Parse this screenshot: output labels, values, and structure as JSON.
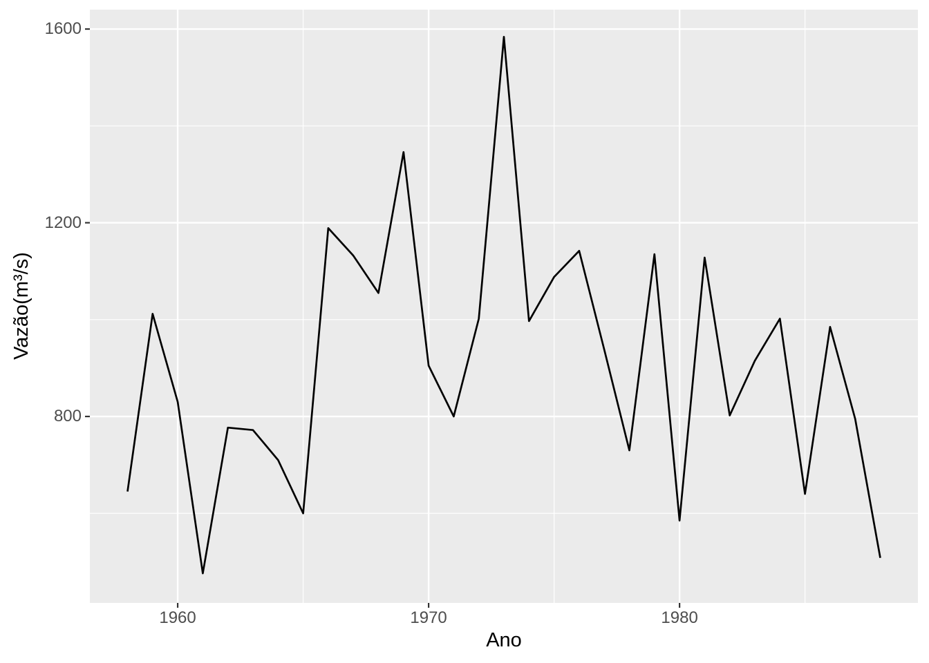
{
  "chart_data": {
    "type": "line",
    "title": "",
    "xlabel": "Ano",
    "ylabel": "Vazão(m³/s)",
    "x": [
      1958,
      1959,
      1960,
      1961,
      1962,
      1963,
      1964,
      1965,
      1966,
      1967,
      1968,
      1969,
      1970,
      1971,
      1972,
      1973,
      1974,
      1975,
      1976,
      1977,
      1978,
      1979,
      1980,
      1981,
      1982,
      1983,
      1984,
      1985,
      1986,
      1987,
      1988
    ],
    "series": [
      {
        "name": "Vazão",
        "values": [
          645,
          1012,
          830,
          476,
          777,
          772,
          710,
          600,
          1189,
          1132,
          1055,
          1346,
          905,
          800,
          1002,
          1584,
          997,
          1088,
          1142,
          938,
          730,
          1135,
          585,
          1128,
          802,
          915,
          1002,
          640,
          985,
          795,
          508
        ]
      }
    ],
    "xlim": [
      1956.5,
      1989.5
    ],
    "ylim": [
      415,
      1640
    ],
    "x_major_ticks": [
      1960,
      1970,
      1980
    ],
    "x_minor_ticks": [
      1965,
      1975,
      1985
    ],
    "y_major_ticks": [
      800,
      1200,
      1600
    ],
    "y_minor_ticks": [
      600,
      1000,
      1400
    ],
    "x_tick_labels": [
      "1960",
      "1970",
      "1980"
    ],
    "y_tick_labels": [
      "800",
      "1200",
      "1600"
    ],
    "grid": "major-and-minor",
    "legend": false,
    "colors": {
      "line": "#000000",
      "panel_bg": "#EBEBEB",
      "grid": "#FFFFFF",
      "tick_label": "#4D4D4D",
      "axis_title": "#000000",
      "tick_mark": "#333333",
      "outer_bg": "#FFFFFF"
    }
  }
}
